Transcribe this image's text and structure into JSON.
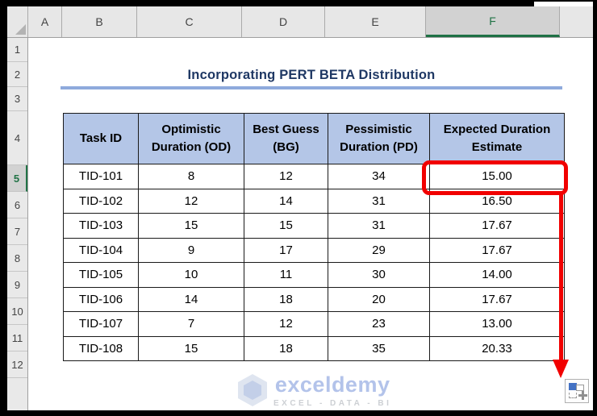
{
  "title": {
    "text": "Incorporating PERT BETA Distribution"
  },
  "sheet": {
    "columns": [
      "A",
      "B",
      "C",
      "D",
      "E",
      "F"
    ],
    "rows": [
      "1",
      "2",
      "3",
      "4",
      "5",
      "6",
      "7",
      "8",
      "9",
      "10",
      "11",
      "12"
    ],
    "selected_column": "F",
    "selected_row": "5"
  },
  "table": {
    "headers": [
      {
        "line1": "Task ID",
        "line2": ""
      },
      {
        "line1": "Optimistic",
        "line2": "Duration (OD)"
      },
      {
        "line1": "Best Guess",
        "line2": "(BG)"
      },
      {
        "line1": "Pessimistic",
        "line2": "Duration (PD)"
      },
      {
        "line1": "Expected Duration",
        "line2": "Estimate"
      }
    ],
    "rows": [
      [
        "TID-101",
        "8",
        "12",
        "34",
        "15.00"
      ],
      [
        "TID-102",
        "12",
        "14",
        "31",
        "16.50"
      ],
      [
        "TID-103",
        "15",
        "15",
        "31",
        "17.67"
      ],
      [
        "TID-104",
        "9",
        "17",
        "29",
        "17.67"
      ],
      [
        "TID-105",
        "10",
        "11",
        "30",
        "14.00"
      ],
      [
        "TID-106",
        "14",
        "18",
        "20",
        "17.67"
      ],
      [
        "TID-107",
        "7",
        "12",
        "23",
        "13.00"
      ],
      [
        "TID-108",
        "15",
        "18",
        "35",
        "20.33"
      ]
    ]
  },
  "annotation": {
    "highlighted_cell": "F5",
    "highlighted_value": "15.00",
    "shape": "red-box-with-down-arrow"
  },
  "watermark": {
    "brand": "exceldemy",
    "tagline": "EXCEL - DATA - BI"
  },
  "colors": {
    "table_header_fill": "#B4C6E7",
    "title_text": "#1F3864",
    "title_underline": "#8FAADC",
    "annotation_red": "#F10000",
    "selection_green": "#217346",
    "fill_options_blue": "#4472C4"
  }
}
